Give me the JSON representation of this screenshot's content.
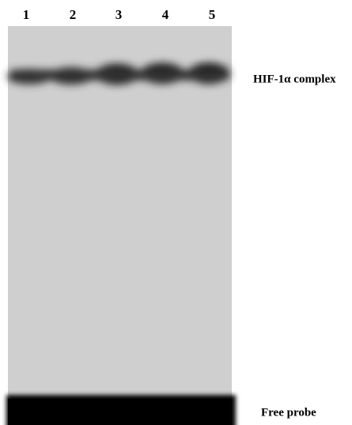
{
  "lanes": [
    "1",
    "2",
    "3",
    "4",
    "5"
  ],
  "labels": {
    "complex": "HIF-1α complex",
    "free": "Free probe"
  }
}
